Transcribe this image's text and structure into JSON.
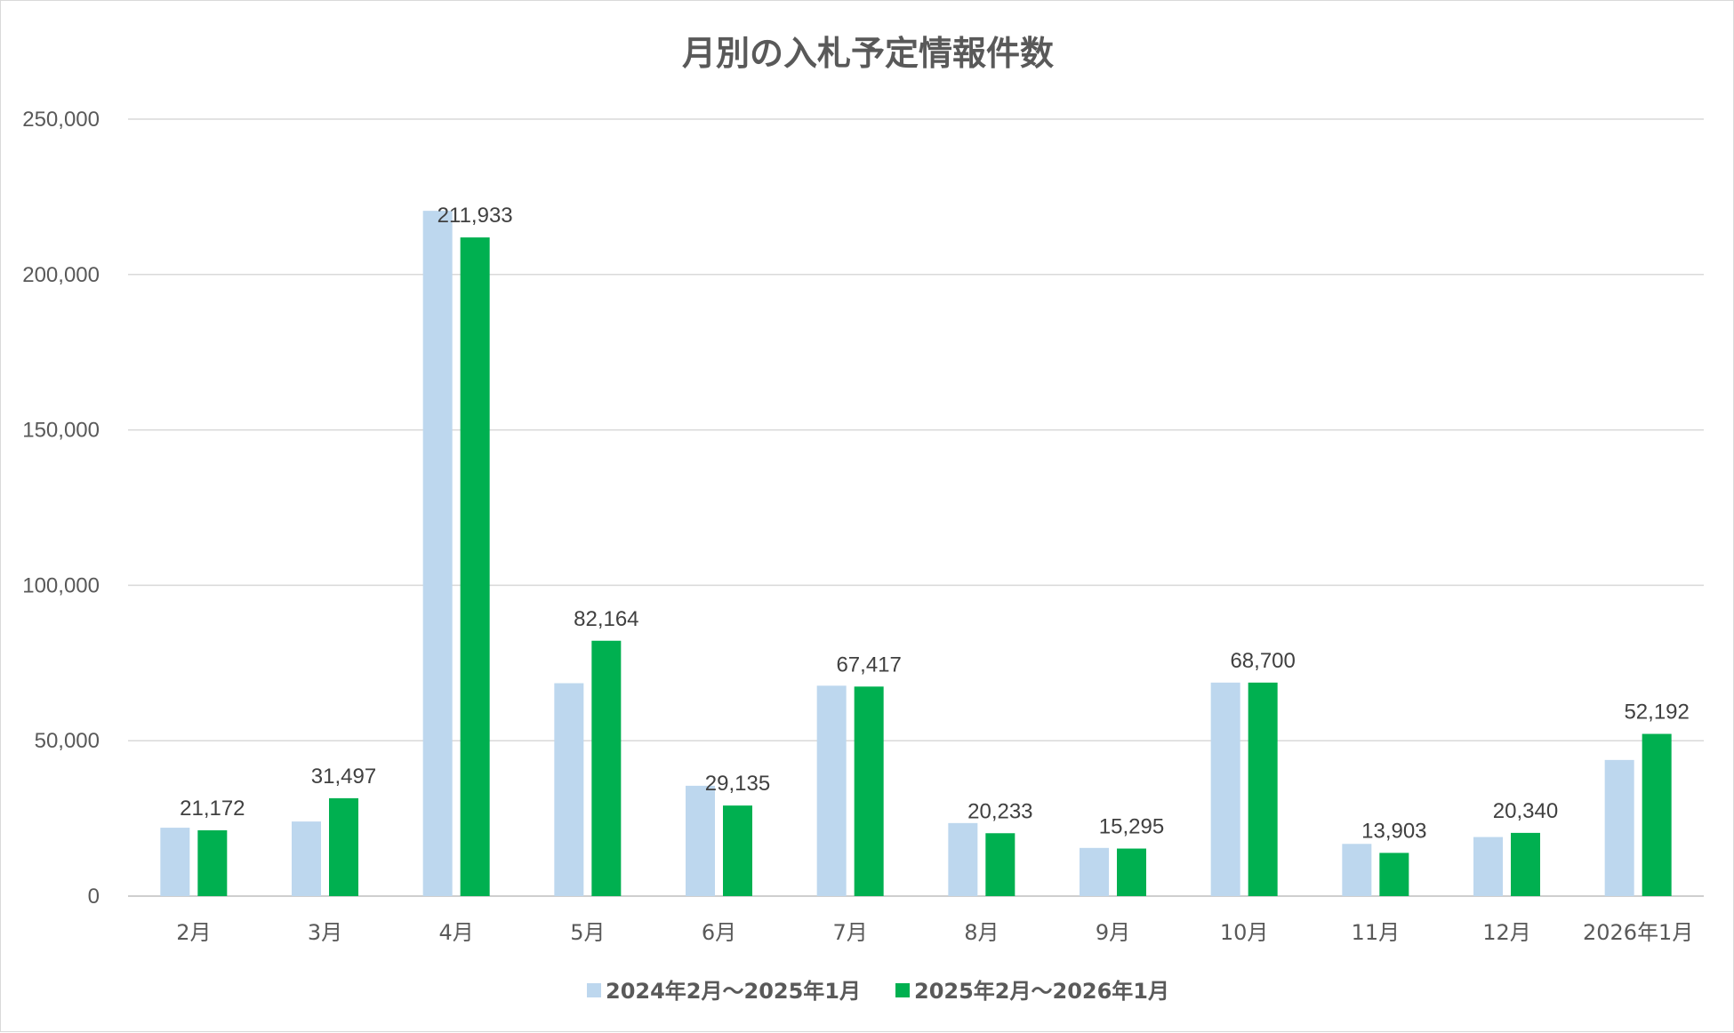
{
  "chart_data": {
    "type": "bar",
    "title": "月別の入札予定情報件数",
    "categories": [
      "2月",
      "3月",
      "4月",
      "5月",
      "6月",
      "7月",
      "8月",
      "9月",
      "10月",
      "11月",
      "12月",
      "2026年1月"
    ],
    "series": [
      {
        "name": "2024年2月～2025年1月",
        "color": "#bdd7ee",
        "values": [
          22000,
          24000,
          220500,
          68500,
          35500,
          67700,
          23500,
          15500,
          68700,
          16800,
          19000,
          43800
        ],
        "data_labels": []
      },
      {
        "name": "2025年2月～2026年1月",
        "color": "#00b050",
        "values": [
          21172,
          31497,
          211933,
          82164,
          29135,
          67417,
          20233,
          15295,
          68700,
          13903,
          20340,
          52192
        ],
        "data_labels": [
          "21,172",
          "31,497",
          "211,933",
          "82,164",
          "29,135",
          "67,417",
          "20,233",
          "15,295",
          "68,700",
          "13,903",
          "20,340",
          "52,192"
        ]
      }
    ],
    "ylim": [
      0,
      250000
    ],
    "yticks": [
      0,
      50000,
      100000,
      150000,
      200000,
      250000
    ],
    "ytick_labels": [
      "0",
      "50,000",
      "100,000",
      "150,000",
      "200,000",
      "250,000"
    ],
    "xlabel": "",
    "ylabel": "",
    "grid": true,
    "legend_position": "bottom"
  }
}
